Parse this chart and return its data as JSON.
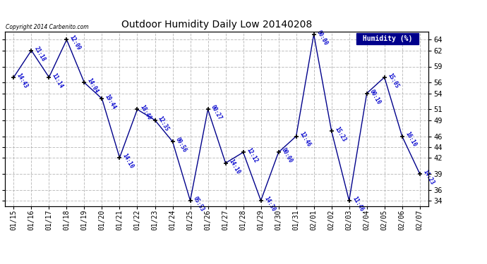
{
  "title": "Outdoor Humidity Daily Low 20140208",
  "copyright": "Copyright 2014 Carbenito.com",
  "background_color": "#ffffff",
  "line_color": "#00008B",
  "text_color": "#0000CD",
  "grid_color": "#b0b0b0",
  "dates": [
    "01/15",
    "01/16",
    "01/17",
    "01/18",
    "01/19",
    "01/20",
    "01/21",
    "01/22",
    "01/23",
    "01/24",
    "01/25",
    "01/26",
    "01/27",
    "01/28",
    "01/29",
    "01/30",
    "01/31",
    "02/01",
    "02/02",
    "02/03",
    "02/04",
    "02/05",
    "02/06",
    "02/07"
  ],
  "values": [
    57,
    62,
    57,
    64,
    56,
    53,
    42,
    51,
    49,
    45,
    34,
    51,
    41,
    43,
    34,
    43,
    46,
    65,
    47,
    34,
    54,
    57,
    46,
    39
  ],
  "labels": [
    "14:43",
    "21:18",
    "11:14",
    "12:09",
    "14:04",
    "19:44",
    "14:10",
    "18:40",
    "12:35",
    "09:56",
    "05:53",
    "00:27",
    "14:10",
    "12:12",
    "14:30",
    "00:00",
    "12:46",
    "00:00",
    "15:23",
    "11:46",
    "00:10",
    "15:05",
    "16:10",
    "14:23"
  ],
  "ylim": [
    33,
    65.5
  ],
  "yticks": [
    34,
    36,
    39,
    42,
    44,
    46,
    49,
    51,
    54,
    56,
    59,
    62,
    64
  ],
  "legend_text": "Humidity (%)",
  "legend_bg": "#00008B",
  "legend_fg": "#ffffff"
}
